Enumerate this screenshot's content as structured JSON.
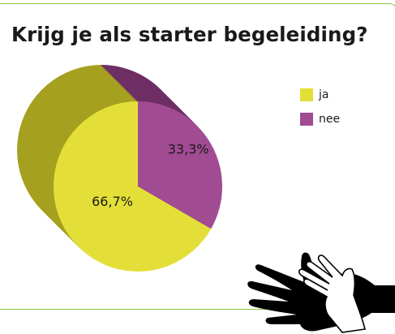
{
  "chart_data": {
    "type": "pie",
    "title": "Krijg je als starter begeleiding?",
    "categories": [
      "ja",
      "nee"
    ],
    "values": [
      66.7,
      33.3
    ],
    "data_labels": [
      "66,7%",
      "33,3%"
    ],
    "colors": [
      "#e3df38",
      "#a14b93"
    ],
    "side_colors": [
      "#a6a020",
      "#6e2f64"
    ],
    "legend_placement": "top-right",
    "style": "3d"
  },
  "decoration": {
    "icon": "helping-hands-icon",
    "colors": [
      "#000000",
      "#ffffff"
    ]
  }
}
